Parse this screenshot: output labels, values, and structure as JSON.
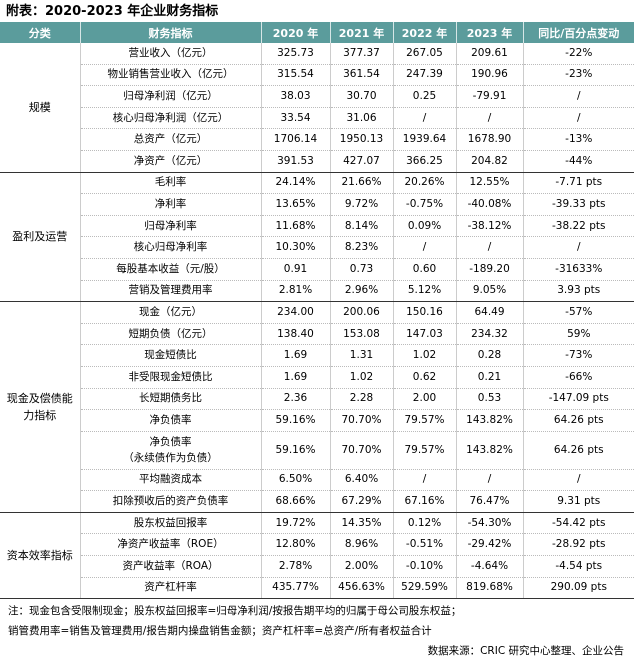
{
  "title": "附表：2020-2023 年企业财务指标",
  "headers": [
    "分类",
    "财务指标",
    "2020 年",
    "2021 年",
    "2022 年",
    "2023 年",
    "同比/百分点变动"
  ],
  "groups": [
    {
      "category": "规模",
      "rows": [
        [
          "营业收入（亿元）",
          "325.73",
          "377.37",
          "267.05",
          "209.61",
          "-22%"
        ],
        [
          "物业销售营业收入（亿元）",
          "315.54",
          "361.54",
          "247.39",
          "190.96",
          "-23%"
        ],
        [
          "归母净利润（亿元）",
          "38.03",
          "30.70",
          "0.25",
          "-79.91",
          "/"
        ],
        [
          "核心归母净利润（亿元）",
          "33.54",
          "31.06",
          "/",
          "/",
          "/"
        ],
        [
          "总资产（亿元）",
          "1706.14",
          "1950.13",
          "1939.64",
          "1678.90",
          "-13%"
        ],
        [
          "净资产（亿元）",
          "391.53",
          "427.07",
          "366.25",
          "204.82",
          "-44%"
        ]
      ]
    },
    {
      "category": "盈利及运营",
      "rows": [
        [
          "毛利率",
          "24.14%",
          "21.66%",
          "20.26%",
          "12.55%",
          "-7.71 pts"
        ],
        [
          "净利率",
          "13.65%",
          "9.72%",
          "-0.75%",
          "-40.08%",
          "-39.33 pts"
        ],
        [
          "归母净利率",
          "11.68%",
          "8.14%",
          "0.09%",
          "-38.12%",
          "-38.22 pts"
        ],
        [
          "核心归母净利率",
          "10.30%",
          "8.23%",
          "/",
          "/",
          "/"
        ],
        [
          "每股基本收益（元/股）",
          "0.91",
          "0.73",
          "0.60",
          "-189.20",
          "-31633%"
        ],
        [
          "营销及管理费用率",
          "2.81%",
          "2.96%",
          "5.12%",
          "9.05%",
          "3.93 pts"
        ]
      ]
    },
    {
      "category": "现金及偿债能力指标",
      "rows": [
        [
          "现金（亿元）",
          "234.00",
          "200.06",
          "150.16",
          "64.49",
          "-57%"
        ],
        [
          "短期负债（亿元）",
          "138.40",
          "153.08",
          "147.03",
          "234.32",
          "59%"
        ],
        [
          "现金短债比",
          "1.69",
          "1.31",
          "1.02",
          "0.28",
          "-73%"
        ],
        [
          "非受限现金短债比",
          "1.69",
          "1.02",
          "0.62",
          "0.21",
          "-66%"
        ],
        [
          "长短期债务比",
          "2.36",
          "2.28",
          "2.00",
          "0.53",
          "-147.09 pts"
        ],
        [
          "净负债率",
          "59.16%",
          "70.70%",
          "79.57%",
          "143.82%",
          "64.26 pts"
        ],
        [
          "净负债率\n（永续债作为负债）",
          "59.16%",
          "70.70%",
          "79.57%",
          "143.82%",
          "64.26 pts"
        ],
        [
          "平均融资成本",
          "6.50%",
          "6.40%",
          "/",
          "/",
          "/"
        ],
        [
          "扣除预收后的资产负债率",
          "68.66%",
          "67.29%",
          "67.16%",
          "76.47%",
          "9.31 pts"
        ]
      ]
    },
    {
      "category": "资本效率指标",
      "rows": [
        [
          "股东权益回报率",
          "19.72%",
          "14.35%",
          "0.12%",
          "-54.30%",
          "-54.42 pts"
        ],
        [
          "净资产收益率（ROE）",
          "12.80%",
          "8.96%",
          "-0.51%",
          "-29.42%",
          "-28.92 pts"
        ],
        [
          "资产收益率（ROA）",
          "2.78%",
          "2.00%",
          "-0.10%",
          "-4.64%",
          "-4.54 pts"
        ],
        [
          "资产杠杆率",
          "435.77%",
          "456.63%",
          "529.59%",
          "819.68%",
          "290.09 pts"
        ]
      ]
    }
  ],
  "notes": [
    "注：现金包含受限制现金；股东权益回报率=归母净利润/按报告期平均的归属于母公司股东权益；",
    "销管费用率=销售及管理费用/报告期内操盘销售金额；资产杠杆率=总资产/所有者权益合计"
  ],
  "source": "数据来源：CRIC 研究中心整理、企业公告"
}
